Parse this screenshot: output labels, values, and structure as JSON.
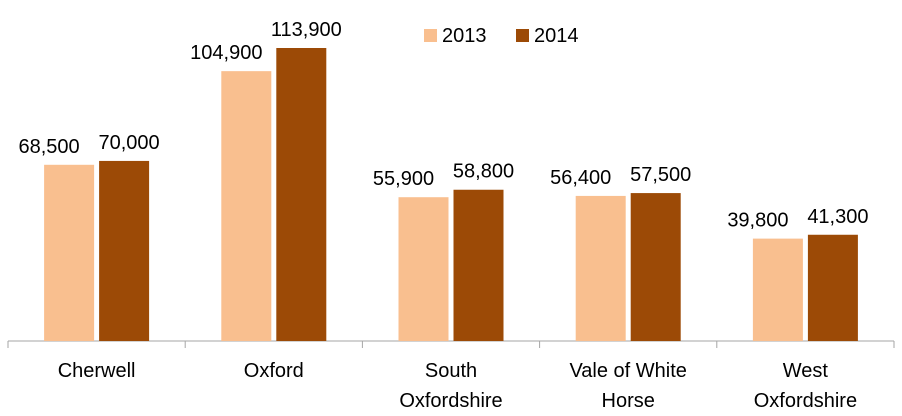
{
  "chart_data": {
    "type": "bar",
    "categories": [
      "Cherwell",
      "Oxford",
      "South Oxfordshire",
      "Vale of White Horse",
      "West Oxfordshire"
    ],
    "series": [
      {
        "name": "2013",
        "color": "#f9bf8f",
        "values": [
          68500,
          104900,
          55900,
          56400,
          39800
        ],
        "value_labels": [
          "68,500",
          "104,900",
          "55,900",
          "56,400",
          "39,800"
        ]
      },
      {
        "name": "2014",
        "color": "#9c4a06",
        "values": [
          70000,
          113900,
          58800,
          57500,
          41300
        ],
        "value_labels": [
          "70,000",
          "113,900",
          "58,800",
          "57,500",
          "41,300"
        ]
      }
    ],
    "legend": "top"
  }
}
